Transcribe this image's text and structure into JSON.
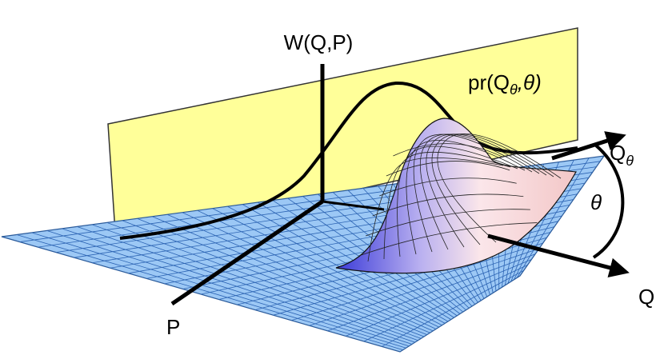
{
  "labels": {
    "w_axis": "W(Q,P)",
    "projection": {
      "prefix": "pr(Q",
      "subscript": "θ",
      "suffix": ",θ)"
    },
    "rotated_axis": {
      "main": "Q",
      "subscript": "θ"
    },
    "angle": "θ",
    "q_axis": "Q",
    "p_axis": "P"
  }
}
